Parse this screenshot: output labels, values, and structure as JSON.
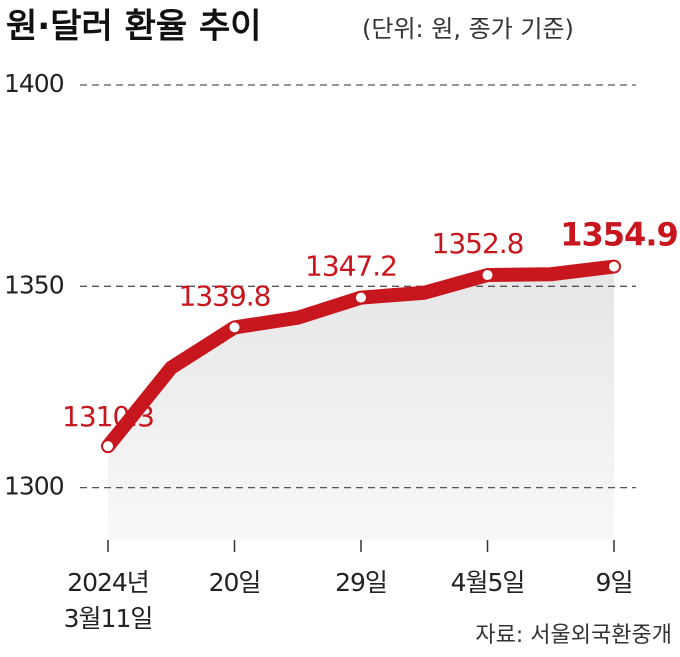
{
  "chart_data": {
    "type": "line",
    "title": "원·달러 환율 추이",
    "subtitle": "(단위: 원, 종가 기준)",
    "source": "자료: 서울외국환중개",
    "categories": [
      "2024년\n3월11일",
      null,
      "20일",
      null,
      "29일",
      null,
      "4월5일",
      null,
      "9일"
    ],
    "series": [
      {
        "name": "원·달러 환율",
        "color": "#c8161e",
        "values": [
          1310.3,
          1329.8,
          1339.8,
          1342.2,
          1347.2,
          1348.4,
          1352.8,
          1353.0,
          1354.9
        ],
        "value_labels": [
          "1310.3",
          null,
          "1339.8",
          null,
          "1347.2",
          null,
          "1352.8",
          null,
          "1354.9"
        ]
      }
    ],
    "ylim": [
      1287,
      1400
    ],
    "yticks": [
      1300,
      1350,
      1400
    ],
    "grid": true
  }
}
